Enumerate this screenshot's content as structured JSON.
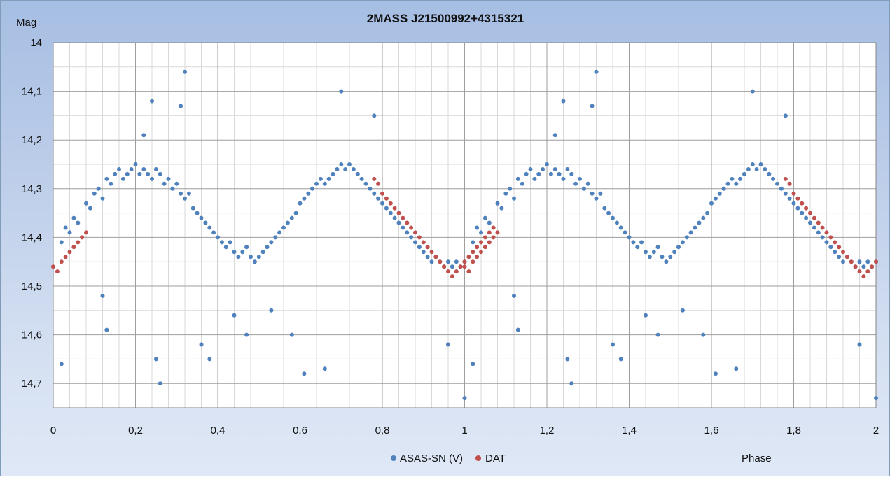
{
  "chart_data": {
    "type": "scatter",
    "title": "2MASS J21500992+4315321",
    "xlabel": "Phase",
    "ylabel": "Mag",
    "xlim": [
      0,
      2
    ],
    "ylim": [
      14,
      14.75
    ],
    "y_reversed": true,
    "x_ticks": [
      "0",
      "0,2",
      "0,4",
      "0,6",
      "0,8",
      "1",
      "1,2",
      "1,4",
      "1,6",
      "1,8",
      "2"
    ],
    "x_tick_values": [
      0,
      0.2,
      0.4,
      0.6,
      0.8,
      1.0,
      1.2,
      1.4,
      1.6,
      1.8,
      2.0
    ],
    "y_ticks": [
      "14",
      "14,1",
      "14,2",
      "14,3",
      "14,4",
      "14,5",
      "14,6",
      "14,7"
    ],
    "y_tick_values": [
      14.0,
      14.1,
      14.2,
      14.3,
      14.4,
      14.5,
      14.6,
      14.7
    ],
    "grid": true,
    "legend_position": "bottom",
    "series": [
      {
        "name": "ASAS-SN (V)",
        "color": "#4f81bd",
        "marker": "circle",
        "x": [
          0.02,
          0.03,
          0.04,
          0.05,
          0.06,
          0.08,
          0.09,
          0.1,
          0.11,
          0.12,
          0.13,
          0.14,
          0.15,
          0.16,
          0.17,
          0.18,
          0.19,
          0.2,
          0.21,
          0.22,
          0.23,
          0.24,
          0.25,
          0.26,
          0.27,
          0.28,
          0.29,
          0.3,
          0.31,
          0.32,
          0.33,
          0.34,
          0.35,
          0.36,
          0.37,
          0.38,
          0.39,
          0.4,
          0.41,
          0.42,
          0.43,
          0.44,
          0.45,
          0.46,
          0.47,
          0.48,
          0.49,
          0.5,
          0.51,
          0.52,
          0.53,
          0.54,
          0.55,
          0.56,
          0.57,
          0.58,
          0.59,
          0.6,
          0.61,
          0.62,
          0.63,
          0.64,
          0.65,
          0.66,
          0.67,
          0.68,
          0.69,
          0.7,
          0.71,
          0.72,
          0.73,
          0.74,
          0.75,
          0.76,
          0.77,
          0.78,
          0.79,
          0.8,
          0.81,
          0.82,
          0.83,
          0.84,
          0.85,
          0.86,
          0.87,
          0.88,
          0.89,
          0.9,
          0.91,
          0.92,
          0.93,
          0.94,
          0.95,
          0.96,
          0.97,
          0.98,
          0.99,
          1.0,
          0.24,
          0.32,
          0.7,
          0.78,
          0.31,
          0.22,
          0.13,
          0.26,
          0.25,
          0.36,
          0.38,
          0.47,
          0.58,
          0.61,
          0.66,
          0.96,
          1.0,
          0.02,
          0.12,
          0.44,
          0.53
        ],
        "y": [
          14.41,
          14.38,
          14.39,
          14.36,
          14.37,
          14.33,
          14.34,
          14.31,
          14.3,
          14.32,
          14.28,
          14.29,
          14.27,
          14.26,
          14.28,
          14.27,
          14.26,
          14.25,
          14.27,
          14.26,
          14.27,
          14.28,
          14.26,
          14.27,
          14.29,
          14.28,
          14.3,
          14.29,
          14.31,
          14.32,
          14.31,
          14.34,
          14.35,
          14.36,
          14.37,
          14.38,
          14.39,
          14.4,
          14.41,
          14.42,
          14.41,
          14.43,
          14.44,
          14.43,
          14.42,
          14.44,
          14.45,
          14.44,
          14.43,
          14.42,
          14.41,
          14.4,
          14.39,
          14.38,
          14.37,
          14.36,
          14.35,
          14.33,
          14.32,
          14.31,
          14.3,
          14.29,
          14.28,
          14.29,
          14.28,
          14.27,
          14.26,
          14.25,
          14.26,
          14.25,
          14.26,
          14.27,
          14.28,
          14.29,
          14.3,
          14.31,
          14.32,
          14.33,
          14.34,
          14.35,
          14.36,
          14.37,
          14.38,
          14.39,
          14.4,
          14.41,
          14.42,
          14.43,
          14.44,
          14.45,
          14.44,
          14.45,
          14.46,
          14.45,
          14.46,
          14.45,
          14.46,
          14.45,
          14.12,
          14.06,
          14.1,
          14.15,
          14.13,
          14.19,
          14.59,
          14.7,
          14.65,
          14.62,
          14.65,
          14.6,
          14.6,
          14.68,
          14.67,
          14.62,
          14.73,
          14.66,
          14.52,
          14.56,
          14.55
        ]
      },
      {
        "name": "DAT",
        "color": "#c0504d",
        "marker": "circle",
        "x": [
          0.0,
          0.01,
          0.02,
          0.03,
          0.04,
          0.05,
          0.06,
          0.07,
          0.08,
          0.78,
          0.79,
          0.8,
          0.81,
          0.82,
          0.83,
          0.84,
          0.85,
          0.86,
          0.87,
          0.88,
          0.89,
          0.9,
          0.91,
          0.92,
          0.93,
          0.94,
          0.95,
          0.96,
          0.97,
          0.98,
          0.99,
          1.0,
          1.01,
          1.02,
          1.03,
          1.04,
          1.05,
          1.06,
          1.07
        ],
        "y": [
          14.46,
          14.47,
          14.45,
          14.44,
          14.43,
          14.42,
          14.41,
          14.4,
          14.39,
          14.28,
          14.29,
          14.31,
          14.32,
          14.33,
          14.34,
          14.35,
          14.36,
          14.37,
          14.38,
          14.39,
          14.4,
          14.41,
          14.42,
          14.43,
          14.44,
          14.45,
          14.46,
          14.47,
          14.48,
          14.47,
          14.46,
          14.45,
          14.44,
          14.43,
          14.42,
          14.41,
          14.4,
          14.39,
          14.38
        ]
      }
    ]
  }
}
